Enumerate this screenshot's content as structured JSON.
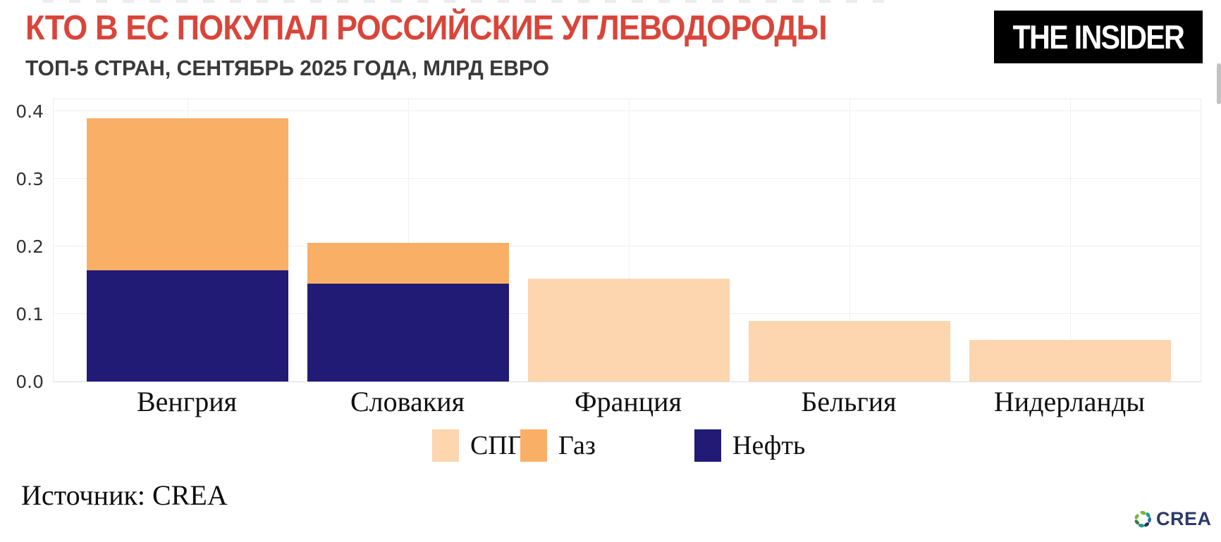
{
  "header": {
    "title": "КТО В ЕС ПОКУПАЛ РОССИЙСКИЕ УГЛЕВОДОРОДЫ",
    "subtitle": "ТОП-5 СТРАН, СЕНТЯБРЬ 2025 ГОДА, МЛРД ЕВРО",
    "logo_text": "THE INSIDER"
  },
  "colors": {
    "title_red": "#D9453A",
    "subtitle_gray": "#3A3A3A",
    "lng_peach": "#FDD5AE",
    "gas_orange": "#F9B066",
    "oil_navy": "#211B76",
    "logo_bg": "#000000",
    "logo_fg": "#FFFFFF",
    "crea_navy": "#2B3A67"
  },
  "chart_data": {
    "type": "bar",
    "stacked": true,
    "title": "КТО В ЕС ПОКУПАЛ РОССИЙСКИЕ УГЛЕВОДОРОДЫ",
    "subtitle": "ТОП-5 СТРАН, СЕНТЯБРЬ 2025 ГОДА, МЛРД ЕВРО",
    "xlabel": "",
    "ylabel": "",
    "categories": [
      "Венгрия",
      "Словакия",
      "Франция",
      "Бельгия",
      "Нидерланды"
    ],
    "series": [
      {
        "name": "СПГ",
        "color": "#FDD5AE",
        "values": [
          0,
          0,
          0.152,
          0.09,
          0.061
        ]
      },
      {
        "name": "Газ",
        "color": "#F9B066",
        "values": [
          0.225,
          0.06,
          0,
          0,
          0
        ]
      },
      {
        "name": "Нефть",
        "color": "#211B76",
        "values": [
          0.165,
          0.145,
          0,
          0,
          0
        ]
      }
    ],
    "totals": [
      0.39,
      0.205,
      0.152,
      0.09,
      0.061
    ],
    "stack_order_bottom_to_top": [
      "Нефть",
      "Газ",
      "СПГ"
    ],
    "legend_order": [
      "СПГ",
      "Газ",
      "Нефть"
    ],
    "yticks": [
      "0.0",
      "0.1",
      "0.2",
      "0.3",
      "0.4"
    ],
    "ylim": [
      0,
      0.42
    ],
    "grid": true,
    "legend_position": "bottom"
  },
  "footer": {
    "source": "Источник: CREA",
    "crea_logo_text": "CREA"
  }
}
